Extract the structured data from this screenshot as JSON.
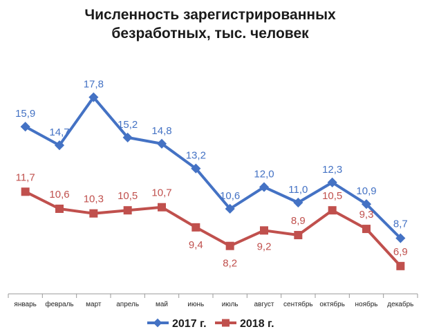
{
  "chart_data": {
    "type": "line",
    "title": [
      "Численность зарегистрированных",
      "безработных, тыс. человек"
    ],
    "categories": [
      "январь",
      "февраль",
      "март",
      "апрель",
      "май",
      "июнь",
      "июль",
      "август",
      "сентябрь",
      "октябрь",
      "ноябрь",
      "декабрь"
    ],
    "series": [
      {
        "name": "2017 г.",
        "color": "#4472c4",
        "marker": "diamond",
        "values": [
          15.9,
          14.7,
          17.8,
          15.2,
          14.8,
          13.2,
          10.6,
          12.0,
          11.0,
          12.3,
          10.9,
          8.7
        ],
        "labels": [
          "15,9",
          "14,7",
          "17,8",
          "15,2",
          "14,8",
          "13,2",
          "10,6",
          "12,0",
          "11,0",
          "12,3",
          "10,9",
          "8,7"
        ]
      },
      {
        "name": "2018 г.",
        "color": "#c0504d",
        "marker": "square",
        "values": [
          11.7,
          10.6,
          10.3,
          10.5,
          10.7,
          9.4,
          8.2,
          9.2,
          8.9,
          10.5,
          9.3,
          6.9
        ],
        "labels": [
          "11,7",
          "10,6",
          "10,3",
          "10,5",
          "10,7",
          "9,4",
          "8,2",
          "9,2",
          "8,9",
          "10,5",
          "9,3",
          "6,9"
        ]
      }
    ],
    "ylim": [
      6.0,
      18.5
    ],
    "grid": false,
    "legend": "bottom"
  }
}
